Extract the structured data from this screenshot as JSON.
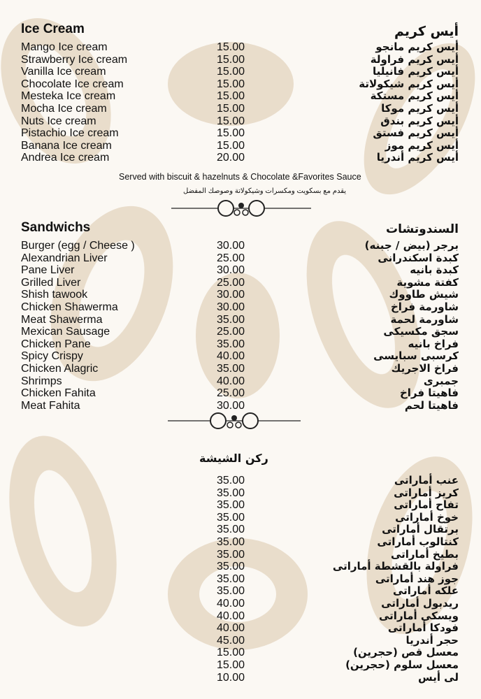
{
  "ice_cream": {
    "title_en": "Ice Cream",
    "title_ar": "أيس كريم",
    "items": [
      {
        "en": "Mango Ice cream",
        "price": "15.00",
        "ar": "أيس كريم مانجو"
      },
      {
        "en": "Strawberry Ice cream",
        "price": "15.00",
        "ar": "أيس كريم فراولة"
      },
      {
        "en": "Vanilla Ice cream",
        "price": "15.00",
        "ar": "أيس كريم فانيليا"
      },
      {
        "en": "Chocolate Ice cream",
        "price": "15.00",
        "ar": "أيس كريم شيكولاتة"
      },
      {
        "en": "Mesteka Ice cream",
        "price": "15.00",
        "ar": "أيس كريم مستكة"
      },
      {
        "en": "Mocha Ice cream",
        "price": "15.00",
        "ar": "أيس كريم موكا"
      },
      {
        "en": "Nuts Ice cream",
        "price": "15.00",
        "ar": "أيس كريم بندق"
      },
      {
        "en": "Pistachio Ice cream",
        "price": "15.00",
        "ar": "أيس كريم فستق"
      },
      {
        "en": "Banana Ice cream",
        "price": "15.00",
        "ar": "أيس كريم موز"
      },
      {
        "en": "Andrea Ice cream",
        "price": "20.00",
        "ar": "أيس كريم أندريا"
      }
    ],
    "note_en": "Served with biscuit & hazelnuts & Chocolate &Favorites Sauce",
    "note_ar": "يقدم مع بسكويت ومكسرات وشيكولاتة وصوصك المفضل"
  },
  "sandwiches": {
    "title_en": "Sandwichs",
    "title_ar": "السندوتشات",
    "items": [
      {
        "en": "Burger (egg / Cheese )",
        "price": "30.00",
        "ar": "برجر (بيض / جبنه)"
      },
      {
        "en": "Alexandrian Liver",
        "price": "25.00",
        "ar": "كبدة اسكندرانى"
      },
      {
        "en": "Pane Liver",
        "price": "30.00",
        "ar": "كبدة بانيه"
      },
      {
        "en": "Grilled Liver",
        "price": "25.00",
        "ar": "كفتة مشوية"
      },
      {
        "en": "Shish tawook",
        "price": "30.00",
        "ar": "شيش طاووك"
      },
      {
        "en": "Chicken Shawerma",
        "price": "30.00",
        "ar": "شاورمة فراخ"
      },
      {
        "en": "Meat Shawerma",
        "price": "35.00",
        "ar": "شاورمة لحمة"
      },
      {
        "en": "Mexican Sausage",
        "price": "25.00",
        "ar": "سجق مكسيكى"
      },
      {
        "en": "Chicken Pane",
        "price": "35.00",
        "ar": "فراخ بانيه"
      },
      {
        "en": "Spicy Crispy",
        "price": "40.00",
        "ar": "كرسبى سبايسى"
      },
      {
        "en": "Chicken Alagric",
        "price": "35.00",
        "ar": "فراخ الاجريك"
      },
      {
        "en": "Shrimps",
        "price": "40.00",
        "ar": "جمبرى"
      },
      {
        "en": "Chicken Fahita",
        "price": "25.00",
        "ar": "فاهيتا فراخ"
      },
      {
        "en": "Meat Fahita",
        "price": "30.00",
        "ar": "فاهيتا لحم"
      }
    ]
  },
  "shisha": {
    "title_ar": "ركن الشيشة",
    "items": [
      {
        "price": "35.00",
        "ar": "عنب أماراتى"
      },
      {
        "price": "35.00",
        "ar": "كريز أماراتى"
      },
      {
        "price": "35.00",
        "ar": "تفاح أماراتى"
      },
      {
        "price": "35.00",
        "ar": "خوخ أماراتى"
      },
      {
        "price": "35.00",
        "ar": "برتقال أماراتى"
      },
      {
        "price": "35.00",
        "ar": "كنتالوب أماراتى"
      },
      {
        "price": "35.00",
        "ar": "بطيخ أماراتى"
      },
      {
        "price": "35.00",
        "ar": "فراولة بالقشطة أماراتى"
      },
      {
        "price": "35.00",
        "ar": "جوز هند أماراتى"
      },
      {
        "price": "35.00",
        "ar": "علكه أماراتى"
      },
      {
        "price": "40.00",
        "ar": "ريدبول أماراتى"
      },
      {
        "price": "40.00",
        "ar": "ويسكى أماراتى"
      },
      {
        "price": "40.00",
        "ar": "فودكا أماراتى"
      },
      {
        "price": "45.00",
        "ar": "حجر أندريا"
      },
      {
        "price": "15.00",
        "ar": "معسل قص (حجرين)"
      },
      {
        "price": "15.00",
        "ar": "معسل سلوم (حجرين)"
      },
      {
        "price": "10.00",
        "ar": "لى أيس"
      }
    ]
  },
  "colors": {
    "background": "#fbf8f3",
    "pattern": "#e6d8c5",
    "text": "#111111"
  }
}
